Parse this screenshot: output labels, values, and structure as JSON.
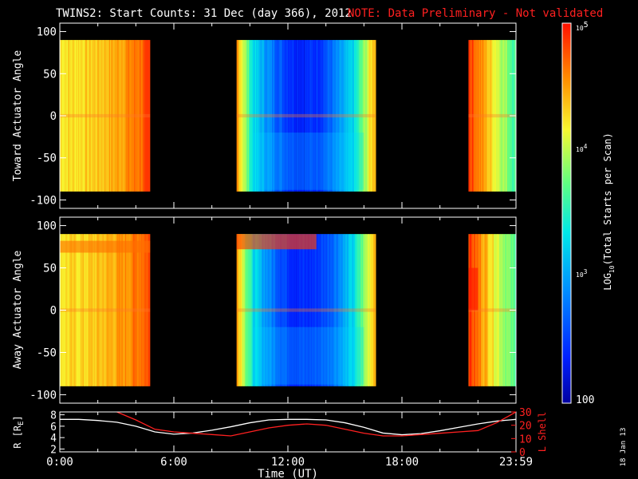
{
  "title": {
    "main": "TWINS2: Start Counts: 31 Dec (day 366), 2012",
    "note": "NOTE: Data Preliminary - Not validated"
  },
  "panels": {
    "top": {
      "ylabel": "Toward Actuator Angle"
    },
    "middle": {
      "ylabel": "Away Actuator Angle"
    },
    "bottom": {
      "ylabel_left": "R [R",
      "ylabel_left_sub": "E",
      "ylabel_left_close": "]",
      "ylabel_right": "L Shell"
    }
  },
  "colorbar": {
    "label_main": "LOG",
    "label_sub": "10",
    "label_rest": "(Total Starts per Scan)",
    "tick_max_base": "10",
    "tick_max_exp": "5",
    "tick_mid_base": "10",
    "tick_mid_exp": "4",
    "tick_low_base": "10",
    "tick_low_exp": "3",
    "tick_min": "100"
  },
  "xaxis": {
    "label": "Time (UT)"
  },
  "datestamp": "18 Jan 13",
  "colors": {
    "background": "#000000",
    "axis": "#ffffff",
    "lshell": "#ff2020",
    "radius": "#ffffff"
  },
  "chart_data": [
    {
      "type": "heatmap",
      "name": "Toward Actuator Angle",
      "x": "time (hours UT)",
      "xlim": [
        0,
        24
      ],
      "ylim": [
        -110,
        110
      ],
      "yticks": [
        -100,
        -50,
        0,
        50,
        100
      ],
      "xticks": [
        "0:00",
        "6:00",
        "12:00",
        "18:00",
        "23:59"
      ],
      "data_coverage_hours": [
        [
          0.0,
          4.75
        ],
        [
          9.3,
          16.6
        ],
        [
          21.5,
          24.0
        ]
      ],
      "angle_coverage": [
        -90,
        90
      ],
      "color_scale": {
        "type": "log",
        "min": 100,
        "max": 100000
      },
      "description_levels_log10": {
        "0.0-4.75h": "4.2-4.9",
        "9.3-16.6h": "2.3-4.4",
        "21.5-24.0h": "3.6-4.9"
      }
    },
    {
      "type": "heatmap",
      "name": "Away Actuator Angle",
      "xlim": [
        0,
        24
      ],
      "ylim": [
        -110,
        110
      ],
      "yticks": [
        -100,
        -50,
        0,
        50,
        100
      ],
      "xticks": [
        "0:00",
        "6:00",
        "12:00",
        "18:00",
        "23:59"
      ],
      "data_coverage_hours": [
        [
          0.0,
          4.75
        ],
        [
          9.3,
          16.6
        ],
        [
          21.5,
          24.0
        ]
      ],
      "angle_coverage": [
        -90,
        90
      ],
      "color_scale": {
        "type": "log",
        "min": 100,
        "max": 100000
      }
    },
    {
      "type": "line",
      "name": "R and L Shell",
      "x": [
        0,
        1,
        2,
        3,
        4,
        5,
        6,
        7,
        8,
        9,
        10,
        11,
        12,
        13,
        14,
        15,
        16,
        17,
        18,
        19,
        20,
        21,
        22,
        23,
        24
      ],
      "series": [
        {
          "name": "R [RE]",
          "axis": "left",
          "ylim": [
            1.5,
            8.5
          ],
          "yticks": [
            2,
            4,
            6,
            8
          ],
          "values": [
            7.2,
            7.2,
            7.0,
            6.7,
            6.0,
            5.0,
            4.6,
            4.8,
            5.3,
            5.9,
            6.6,
            7.1,
            7.2,
            7.2,
            7.1,
            6.6,
            5.8,
            4.8,
            4.5,
            4.7,
            5.2,
            5.8,
            6.4,
            6.9,
            7.2
          ]
        },
        {
          "name": "L Shell",
          "axis": "right",
          "ylim": [
            0,
            30
          ],
          "yticks": [
            0,
            10,
            20,
            30
          ],
          "values": [
            null,
            null,
            null,
            30,
            24,
            17,
            15,
            14,
            13,
            12,
            15,
            18,
            20,
            21,
            20,
            17,
            14,
            12,
            12,
            13,
            14,
            15,
            16,
            22,
            30
          ]
        }
      ]
    }
  ]
}
